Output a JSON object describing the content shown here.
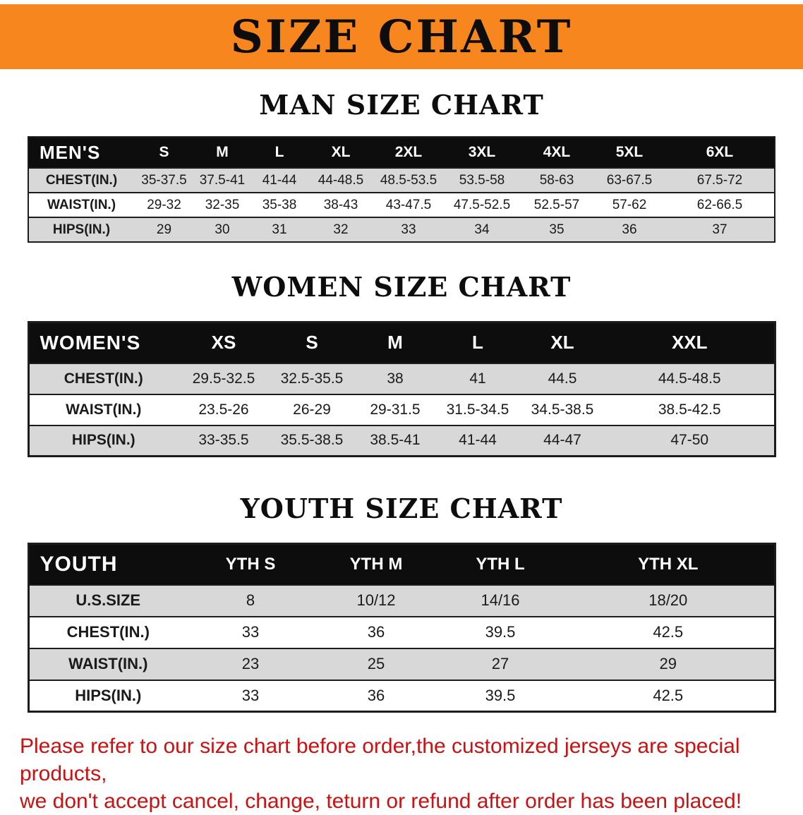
{
  "banner": {
    "title": "SIZE CHART"
  },
  "headings": {
    "men": "MAN SIZE CHART",
    "women": "WOMEN SIZE CHART",
    "youth": "YOUTH SIZE CHART"
  },
  "tables": {
    "men": {
      "label": "MEN'S",
      "columns": [
        "S",
        "M",
        "L",
        "XL",
        "2XL",
        "3XL",
        "4XL",
        "5XL",
        "6XL"
      ],
      "rows": [
        {
          "label": "CHEST(IN.)",
          "values": [
            "35-37.5",
            "37.5-41",
            "41-44",
            "44-48.5",
            "48.5-53.5",
            "53.5-58",
            "58-63",
            "63-67.5",
            "67.5-72"
          ]
        },
        {
          "label": "WAIST(IN.)",
          "values": [
            "29-32",
            "32-35",
            "35-38",
            "38-43",
            "43-47.5",
            "47.5-52.5",
            "52.5-57",
            "57-62",
            "62-66.5"
          ]
        },
        {
          "label": "HIPS(IN.)",
          "values": [
            "29",
            "30",
            "31",
            "32",
            "33",
            "34",
            "35",
            "36",
            "37"
          ]
        }
      ]
    },
    "women": {
      "label": "WOMEN'S",
      "columns": [
        "XS",
        "S",
        "M",
        "L",
        "XL",
        "XXL"
      ],
      "rows": [
        {
          "label": "CHEST(IN.)",
          "values": [
            "29.5-32.5",
            "32.5-35.5",
            "38",
            "41",
            "44.5",
            "44.5-48.5"
          ]
        },
        {
          "label": "WAIST(IN.)",
          "values": [
            "23.5-26",
            "26-29",
            "29-31.5",
            "31.5-34.5",
            "34.5-38.5",
            "38.5-42.5"
          ]
        },
        {
          "label": "HIPS(IN.)",
          "values": [
            "33-35.5",
            "35.5-38.5",
            "38.5-41",
            "41-44",
            "44-47",
            "47-50"
          ]
        }
      ]
    },
    "youth": {
      "label": "YOUTH",
      "columns": [
        "YTH S",
        "YTH M",
        "YTH L",
        "YTH XL"
      ],
      "rows": [
        {
          "label": "U.S.SIZE",
          "values": [
            "8",
            "10/12",
            "14/16",
            "18/20"
          ]
        },
        {
          "label": "CHEST(IN.)",
          "values": [
            "33",
            "36",
            "39.5",
            "42.5"
          ]
        },
        {
          "label": "WAIST(IN.)",
          "values": [
            "23",
            "25",
            "27",
            "29"
          ]
        },
        {
          "label": "HIPS(IN.)",
          "values": [
            "33",
            "36",
            "39.5",
            "42.5"
          ]
        }
      ]
    }
  },
  "disclaimer": {
    "line1": "Please refer to our size chart before order,the customized jerseys are special products,",
    "line2": "we don't accept cancel, change, teturn or refund after order has been placed!"
  },
  "colors": {
    "banner_orange": "#f6861d",
    "header_black": "#0d0d0d",
    "row_gray": "#d8d8d8",
    "disclaimer_red": "#cb1111"
  }
}
